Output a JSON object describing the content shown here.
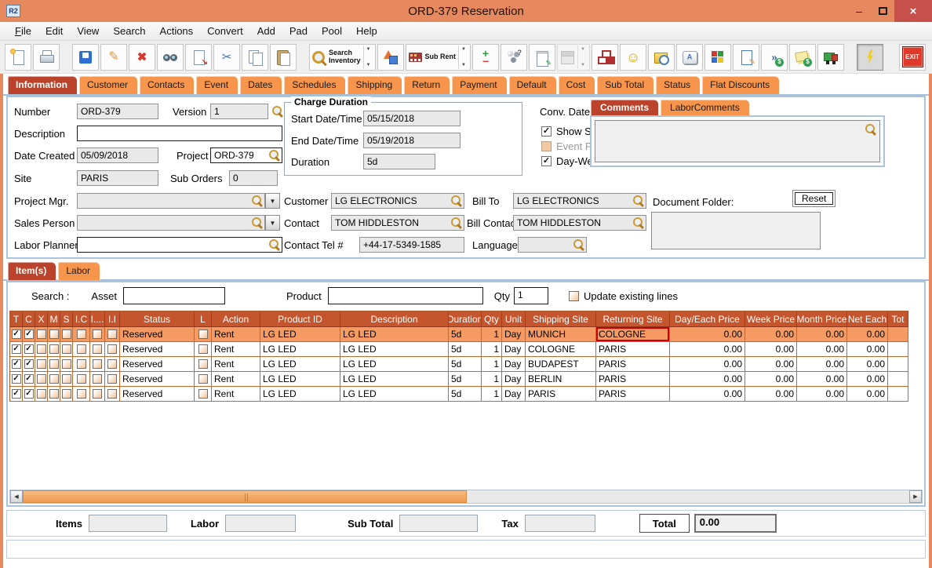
{
  "window": {
    "title": "ORD-379 Reservation",
    "app_logo": "R2"
  },
  "icons": {
    "minimize": "–",
    "close": "×",
    "check": "✓",
    "dropdown": "▼",
    "arrow_left": "◀",
    "arrow_right": "▶",
    "pencil": "✎",
    "redx": "✖",
    "scissors": "✂",
    "smiley": "☺",
    "export_arrow": "↘",
    "dollar": "$",
    "keycap_letter": "A",
    "chevrons": "»",
    "question": "?",
    "plus": "+",
    "minus": "–"
  },
  "menu": {
    "items": [
      {
        "label": "File",
        "underline": true
      },
      {
        "label": "Edit"
      },
      {
        "label": "View"
      },
      {
        "label": "Search"
      },
      {
        "label": "Actions"
      },
      {
        "label": "Convert"
      },
      {
        "label": "Add"
      },
      {
        "label": "Pad"
      },
      {
        "label": "Pool"
      },
      {
        "label": "Help"
      }
    ]
  },
  "toolbar": {
    "buttons": [
      {
        "name": "new-document",
        "icon": "page-new"
      },
      {
        "name": "print",
        "icon": "printer",
        "gap": true
      },
      {
        "name": "save",
        "icon": "floppy"
      },
      {
        "name": "edit",
        "icon": "pencil"
      },
      {
        "name": "delete",
        "icon": "redx"
      },
      {
        "name": "find",
        "icon": "binoculars"
      },
      {
        "name": "export-line",
        "icon": "export"
      },
      {
        "name": "cut",
        "icon": "scissors"
      },
      {
        "name": "copy",
        "icon": "copy"
      },
      {
        "name": "paste",
        "icon": "paste",
        "gap": true
      },
      {
        "name": "search-inventory",
        "icon": "magnifier",
        "label": "Search|Inventory",
        "dropdown": true
      },
      {
        "name": "availability",
        "icon": "shapes"
      },
      {
        "name": "sub-rent",
        "icon": "factory",
        "label": "Sub Rent",
        "dropdown": true
      },
      {
        "name": "add-line",
        "icon": "plusminus"
      },
      {
        "name": "crew",
        "icon": "people"
      },
      {
        "name": "notes",
        "icon": "notepad"
      },
      {
        "name": "schedule",
        "icon": "calendar",
        "dropdown": true,
        "disabled": true
      },
      {
        "name": "org-chart",
        "icon": "org"
      },
      {
        "name": "contact-smiley",
        "icon": "smiley"
      },
      {
        "name": "file-history",
        "icon": "folderclock"
      },
      {
        "name": "hotkey",
        "icon": "keycap"
      },
      {
        "name": "inventory-cubes",
        "icon": "cubes"
      },
      {
        "name": "edit-document",
        "icon": "docedit"
      },
      {
        "name": "send-invoice",
        "icon": "dollarfwd"
      },
      {
        "name": "price-sheet",
        "icon": "dollarnotes"
      },
      {
        "name": "delivery-truck",
        "icon": "truck",
        "gap": true
      },
      {
        "name": "quick-flash",
        "icon": "lightning",
        "pressed": true,
        "exitgroup": true
      },
      {
        "name": "exit",
        "icon": "exit",
        "label": "EXIT"
      }
    ]
  },
  "tabs": {
    "items": [
      "Information",
      "Customer",
      "Contacts",
      "Event",
      "Dates",
      "Schedules",
      "Shipping",
      "Return",
      "Payment",
      "Default",
      "Cost",
      "Sub Total",
      "Status",
      "Flat Discounts"
    ],
    "active": 0
  },
  "info": {
    "fields": {
      "number": {
        "label": "Number",
        "value": "ORD-379"
      },
      "version": {
        "label": "Version",
        "value": "1"
      },
      "description": {
        "label": "Description",
        "value": ""
      },
      "date_created": {
        "label": "Date Created",
        "value": "05/09/2018"
      },
      "project": {
        "label": "Project",
        "value": "ORD-379"
      },
      "site": {
        "label": "Site",
        "value": "PARIS"
      },
      "sub_orders": {
        "label": "Sub Orders",
        "value": "0"
      },
      "project_mgr": {
        "label": "Project Mgr.",
        "value": ""
      },
      "sales_person": {
        "label": "Sales Person",
        "value": ""
      },
      "labor_planner": {
        "label": "Labor Planner",
        "value": ""
      }
    },
    "charge_duration": {
      "title": "Charge Duration",
      "start_label": "Start Date/Time",
      "start": "05/15/2018",
      "end_label": "End Date/Time",
      "end": "05/19/2018",
      "duration_label": "Duration",
      "duration": "5d"
    },
    "conv_date_label": "Conv. Date",
    "conv_date": "",
    "checkboxes": [
      {
        "label": "Show Suggestions",
        "checked": true,
        "enabled": true
      },
      {
        "label": "Event Pricing",
        "checked": false,
        "enabled": false
      },
      {
        "label": "Day-Week-Month Pricing",
        "checked": true,
        "enabled": true
      }
    ],
    "comments_tabs": [
      "Comments",
      "LaborComments"
    ],
    "customer": {
      "label": "Customer",
      "value": "LG ELECTRONICS"
    },
    "bill_to": {
      "label": "Bill To",
      "value": "LG ELECTRONICS"
    },
    "contact": {
      "label": "Contact",
      "value": "TOM HIDDLESTON"
    },
    "bill_contact": {
      "label": "Bill Contact",
      "value": "TOM HIDDLESTON"
    },
    "contact_tel": {
      "label": "Contact Tel #",
      "value": "+44-17-5349-1585"
    },
    "language": {
      "label": "Language",
      "value": ""
    },
    "document_folder_label": "Document Folder:",
    "reset_button": "Reset"
  },
  "items_section": {
    "tabs": [
      "Item(s)",
      "Labor"
    ],
    "search_label": "Search :",
    "asset_label": "Asset",
    "product_label": "Product",
    "qty_label": "Qty",
    "qty_value": "1",
    "update_checkbox_label": "Update existing lines",
    "table": {
      "checkbox_headers": [
        "T",
        "C",
        "X",
        "M",
        "S",
        "I.C",
        "I....",
        "I.I"
      ],
      "headers": [
        "Status",
        "L",
        "Action",
        "Product ID",
        "Description",
        "Duration",
        "Qty",
        "Unit",
        "Shipping Site",
        "Returning Site",
        "Day/Each Price",
        "Week Price",
        "Month Price",
        "Net Each",
        "Tot"
      ],
      "rows": [
        {
          "checks": [
            true,
            true,
            false,
            false,
            false,
            false,
            false,
            false
          ],
          "status": "Reserved",
          "l": false,
          "action": "Rent",
          "product_id": "LG LED",
          "description": "LG LED",
          "duration": "5d",
          "qty": "1",
          "unit": "Day",
          "shipping_site": "MUNICH",
          "returning_site": "COLOGNE",
          "day_each": "0.00",
          "week": "0.00",
          "month": "0.00",
          "net_each": "0.00",
          "tot": "",
          "selected": true,
          "selected_cell": "returning_site"
        },
        {
          "checks": [
            true,
            true,
            false,
            false,
            false,
            false,
            false,
            false
          ],
          "status": "Reserved",
          "l": false,
          "action": "Rent",
          "product_id": "LG LED",
          "description": "LG LED",
          "duration": "5d",
          "qty": "1",
          "unit": "Day",
          "shipping_site": "COLOGNE",
          "returning_site": "PARIS",
          "day_each": "0.00",
          "week": "0.00",
          "month": "0.00",
          "net_each": "0.00",
          "tot": ""
        },
        {
          "checks": [
            true,
            true,
            false,
            false,
            false,
            false,
            false,
            false
          ],
          "status": "Reserved",
          "l": false,
          "action": "Rent",
          "product_id": "LG LED",
          "description": "LG LED",
          "duration": "5d",
          "qty": "1",
          "unit": "Day",
          "shipping_site": "BUDAPEST",
          "returning_site": "PARIS",
          "day_each": "0.00",
          "week": "0.00",
          "month": "0.00",
          "net_each": "0.00",
          "tot": ""
        },
        {
          "checks": [
            true,
            true,
            false,
            false,
            false,
            false,
            false,
            false
          ],
          "status": "Reserved",
          "l": false,
          "action": "Rent",
          "product_id": "LG LED",
          "description": "LG LED",
          "duration": "5d",
          "qty": "1",
          "unit": "Day",
          "shipping_site": "BERLIN",
          "returning_site": "PARIS",
          "day_each": "0.00",
          "week": "0.00",
          "month": "0.00",
          "net_each": "0.00",
          "tot": ""
        },
        {
          "checks": [
            true,
            true,
            false,
            false,
            false,
            false,
            false,
            false
          ],
          "status": "Reserved",
          "l": false,
          "action": "Rent",
          "product_id": "LG LED",
          "description": "LG LED",
          "duration": "5d",
          "qty": "1",
          "unit": "Day",
          "shipping_site": "PARIS",
          "returning_site": "PARIS",
          "day_each": "0.00",
          "week": "0.00",
          "month": "0.00",
          "net_each": "0.00",
          "tot": ""
        }
      ]
    }
  },
  "totals": {
    "items_label": "Items",
    "items": "",
    "labor_label": "Labor",
    "labor": "",
    "sub_total_label": "Sub Total",
    "sub_total": "",
    "tax_label": "Tax",
    "tax": "",
    "total_label": "Total",
    "total": "0.00"
  }
}
